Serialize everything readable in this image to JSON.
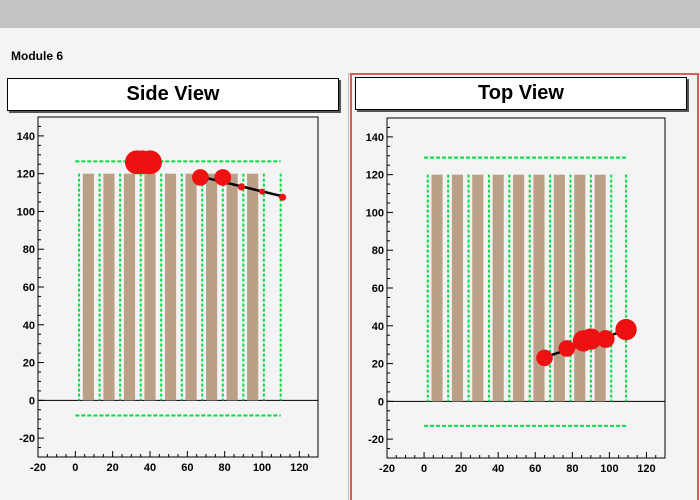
{
  "module_title": "Module 6",
  "colors": {
    "frame_bg": "#f4f4f4",
    "strip": "#bba088",
    "grid_green": "#00dd44",
    "hit_red": "#ee1111",
    "track": "#000000",
    "selected_pad_border": "#e05a5a"
  },
  "chart_data": [
    {
      "type": "scatter",
      "title": "Side View",
      "xlim": [
        -20,
        130
      ],
      "ylim": [
        -30,
        150
      ],
      "x_ticks": [
        "-20",
        "0",
        "20",
        "40",
        "60",
        "80",
        "100",
        "120"
      ],
      "y_ticks": [
        "-20",
        "0",
        "20",
        "40",
        "60",
        "80",
        "100",
        "120",
        "140"
      ],
      "detector_strips": [
        [
          4,
          10
        ],
        [
          15,
          21
        ],
        [
          26,
          32
        ],
        [
          37,
          43
        ],
        [
          48,
          54
        ],
        [
          59,
          65
        ],
        [
          70,
          76
        ],
        [
          81,
          87
        ],
        [
          92,
          98
        ]
      ],
      "strip_height": 120,
      "green_verticals": [
        2,
        13,
        24,
        35,
        46,
        57,
        68,
        79,
        90,
        101,
        110
      ],
      "green_horizontal_y": [
        126.5,
        -8
      ],
      "green_span": [
        0,
        110
      ],
      "hits": [
        {
          "x": 33,
          "y": 126,
          "r": 2
        },
        {
          "x": 36,
          "y": 126,
          "r": 2
        },
        {
          "x": 40,
          "y": 126,
          "r": 2
        },
        {
          "x": 67,
          "y": 118,
          "r": 1.4
        },
        {
          "x": 79,
          "y": 118,
          "r": 1.4
        },
        {
          "x": 89,
          "y": 113,
          "r": 0.6
        },
        {
          "x": 100,
          "y": 110.5,
          "r": 0.5
        },
        {
          "x": 111,
          "y": 107.5,
          "r": 0.6
        }
      ],
      "track": {
        "x": [
          65,
          111
        ],
        "y": [
          119,
          108
        ]
      }
    },
    {
      "type": "scatter",
      "title": "Top View",
      "xlim": [
        -20,
        130
      ],
      "ylim": [
        -30,
        150
      ],
      "x_ticks": [
        "-20",
        "0",
        "20",
        "40",
        "60",
        "80",
        "100",
        "120"
      ],
      "y_ticks": [
        "-20",
        "0",
        "20",
        "40",
        "60",
        "80",
        "100",
        "120",
        "140"
      ],
      "detector_strips": [
        [
          4,
          10
        ],
        [
          15,
          21
        ],
        [
          26,
          32
        ],
        [
          37,
          43
        ],
        [
          48,
          54
        ],
        [
          59,
          65
        ],
        [
          70,
          76
        ],
        [
          81,
          87
        ],
        [
          92,
          98
        ]
      ],
      "strip_height": 120,
      "green_verticals": [
        2,
        13,
        24,
        35,
        46,
        57,
        68,
        79,
        90,
        101,
        109
      ],
      "green_horizontal_y": [
        129,
        -13
      ],
      "green_span": [
        0,
        109
      ],
      "hits": [
        {
          "x": 65,
          "y": 23,
          "r": 1.4
        },
        {
          "x": 77,
          "y": 28,
          "r": 1.4
        },
        {
          "x": 86,
          "y": 32,
          "r": 1.8
        },
        {
          "x": 90,
          "y": 33,
          "r": 1.8
        },
        {
          "x": 98,
          "y": 33,
          "r": 1.5
        },
        {
          "x": 109,
          "y": 38,
          "r": 1.8
        }
      ],
      "track": {
        "x": [
          64,
          110
        ],
        "y": [
          23,
          38
        ]
      }
    }
  ]
}
